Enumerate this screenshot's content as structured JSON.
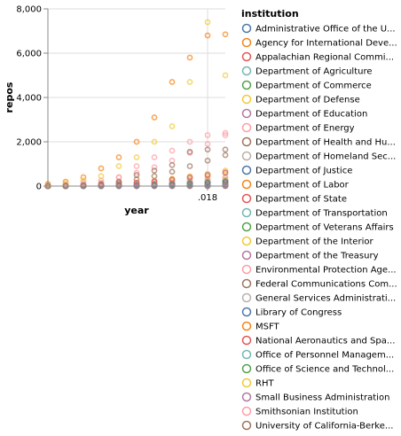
{
  "chart_data": {
    "type": "scatter",
    "xlabel": "year",
    "ylabel": "repos",
    "x_tick_labels": [
      ".018"
    ],
    "y_ticks": [
      0,
      2000,
      4000,
      6000,
      8000
    ],
    "y_tick_labels": [
      "0",
      "2,000",
      "4,000",
      "6,000",
      "8,000"
    ],
    "ylim": [
      0,
      8000
    ],
    "x": [
      2009,
      2010,
      2011,
      2012,
      2013,
      2014,
      2015,
      2016,
      2017,
      2018,
      2019
    ],
    "grid": true,
    "legend_title": "institution",
    "legend_position": "right",
    "series": [
      {
        "name": "Administrative Office of the U...",
        "color": "#4c78a8",
        "values": [
          0,
          0,
          0,
          0,
          2,
          3,
          5,
          6,
          8,
          10,
          12
        ]
      },
      {
        "name": "Agency for International Deve...",
        "color": "#f58518",
        "values": [
          0,
          2,
          5,
          15,
          40,
          80,
          120,
          160,
          200,
          240,
          280
        ]
      },
      {
        "name": "Appalachian Regional Commi...",
        "color": "#e45756",
        "values": [
          0,
          0,
          0,
          0,
          0,
          0,
          1,
          1,
          2,
          2,
          3
        ]
      },
      {
        "name": "Department of Agriculture",
        "color": "#72b7b2",
        "values": [
          0,
          1,
          3,
          8,
          15,
          25,
          40,
          55,
          70,
          85,
          100
        ]
      },
      {
        "name": "Department of Commerce",
        "color": "#54a24b",
        "values": [
          0,
          5,
          12,
          25,
          45,
          70,
          95,
          120,
          145,
          170,
          195
        ]
      },
      {
        "name": "Department of Defense",
        "color": "#eeca3b",
        "values": [
          0,
          10,
          30,
          60,
          100,
          150,
          200,
          250,
          300,
          350,
          400
        ]
      },
      {
        "name": "Department of Education",
        "color": "#b279a2",
        "values": [
          0,
          0,
          1,
          2,
          4,
          6,
          9,
          12,
          15,
          18,
          22
        ]
      },
      {
        "name": "Department of Energy",
        "color": "#ff9da6",
        "values": [
          30,
          80,
          150,
          250,
          400,
          600,
          850,
          1150,
          1500,
          1900,
          2300
        ]
      },
      {
        "name": "Department of Health and Hu...",
        "color": "#9d755d",
        "values": [
          10,
          25,
          50,
          100,
          180,
          300,
          450,
          650,
          900,
          1150,
          1400
        ]
      },
      {
        "name": "Department of Homeland Sec...",
        "color": "#bab0ac",
        "values": [
          0,
          2,
          5,
          10,
          18,
          28,
          40,
          55,
          70,
          85,
          100
        ]
      },
      {
        "name": "Department of Justice",
        "color": "#4c78a8",
        "values": [
          0,
          1,
          2,
          4,
          7,
          10,
          14,
          18,
          22,
          26,
          30
        ]
      },
      {
        "name": "Department of Labor",
        "color": "#f58518",
        "values": [
          0,
          1,
          3,
          6,
          10,
          15,
          22,
          30,
          40,
          50,
          60
        ]
      },
      {
        "name": "Department of State",
        "color": "#e45756",
        "values": [
          0,
          2,
          6,
          12,
          22,
          35,
          50,
          70,
          95,
          120,
          150
        ]
      },
      {
        "name": "Department of Transportation",
        "color": "#72b7b2",
        "values": [
          0,
          1,
          3,
          6,
          10,
          16,
          24,
          33,
          43,
          54,
          65
        ]
      },
      {
        "name": "Department of Veterans Affairs",
        "color": "#54a24b",
        "values": [
          0,
          2,
          5,
          12,
          25,
          45,
          70,
          100,
          140,
          180,
          230
        ]
      },
      {
        "name": "Department of the Interior",
        "color": "#eeca3b",
        "values": [
          5,
          15,
          30,
          60,
          100,
          160,
          240,
          330,
          440,
          560,
          700
        ]
      },
      {
        "name": "Department of the Treasury",
        "color": "#b279a2",
        "values": [
          0,
          1,
          2,
          4,
          8,
          13,
          20,
          28,
          38,
          50,
          64
        ]
      },
      {
        "name": "Environmental Protection Age...",
        "color": "#ff9da6",
        "values": [
          0,
          5,
          15,
          30,
          55,
          90,
          130,
          180,
          240,
          300,
          370
        ]
      },
      {
        "name": "Federal Communications Com...",
        "color": "#9d755d",
        "values": [
          0,
          1,
          3,
          6,
          10,
          15,
          22,
          30,
          40,
          52,
          65
        ]
      },
      {
        "name": "General Services Administrati...",
        "color": "#bab0ac",
        "values": [
          0,
          10,
          25,
          50,
          90,
          140,
          200,
          280,
          370,
          470,
          580
        ]
      },
      {
        "name": "Library of Congress",
        "color": "#4c78a8",
        "values": [
          0,
          3,
          8,
          16,
          28,
          44,
          64,
          88,
          116,
          148,
          184
        ]
      },
      {
        "name": "MSFT",
        "color": "#f58518",
        "values": [
          100,
          200,
          400,
          800,
          1300,
          2000,
          3100,
          4700,
          5800,
          6800,
          6850
        ]
      },
      {
        "name": "National Aeronautics and Spa...",
        "color": "#e45756",
        "values": [
          0,
          10,
          30,
          60,
          100,
          150,
          220,
          300,
          400,
          500,
          620
        ]
      },
      {
        "name": "Office of Personnel Managem...",
        "color": "#72b7b2",
        "values": [
          0,
          0,
          1,
          2,
          3,
          5,
          7,
          10,
          13,
          17,
          21
        ]
      },
      {
        "name": "Office of Science and Technol...",
        "color": "#54a24b",
        "values": [
          0,
          0,
          1,
          2,
          4,
          6,
          9,
          12,
          16,
          20,
          25
        ]
      },
      {
        "name": "RHT",
        "color": "#eeca3b",
        "values": [
          50,
          120,
          250,
          450,
          900,
          1300,
          2000,
          2700,
          4700,
          7400,
          5000
        ]
      },
      {
        "name": "Small Business Administration",
        "color": "#b279a2",
        "values": [
          0,
          0,
          1,
          2,
          3,
          5,
          7,
          10,
          13,
          16,
          20
        ]
      },
      {
        "name": "Smithsonian Institution",
        "color": "#ff9da6",
        "values": [
          20,
          40,
          80,
          150,
          400,
          900,
          1300,
          1600,
          2000,
          2300,
          2400
        ]
      },
      {
        "name": "University of California-Berke...",
        "color": "#9d755d",
        "values": [
          10,
          20,
          40,
          80,
          200,
          500,
          700,
          950,
          1550,
          1650,
          1650
        ]
      }
    ]
  }
}
